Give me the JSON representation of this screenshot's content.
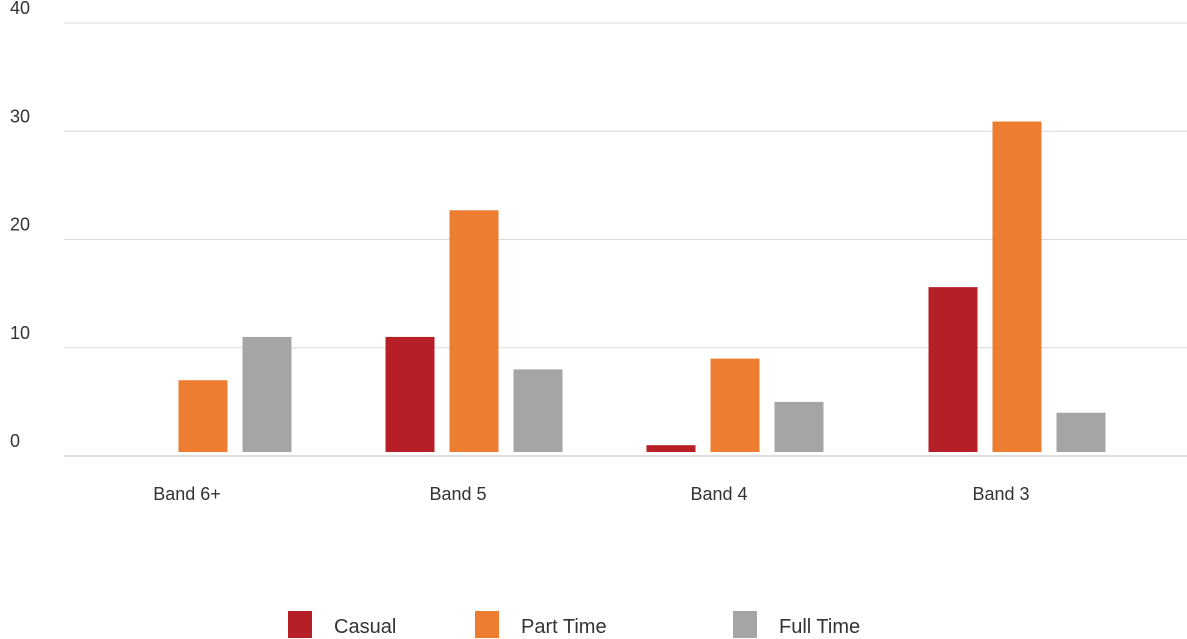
{
  "chart_data": {
    "type": "bar",
    "title": "",
    "xlabel": "",
    "ylabel": "",
    "categories": [
      "Band 6+",
      "Band 5",
      "Band 4",
      "Band 3"
    ],
    "series": [
      {
        "name": "Casual",
        "color": "#b71f26",
        "values": [
          0,
          11,
          1,
          15.6
        ]
      },
      {
        "name": "Part Time",
        "color": "#ed7d31",
        "values": [
          7,
          22.7,
          9,
          30.9
        ]
      },
      {
        "name": "Full Time",
        "color": "#a5a5a5",
        "values": [
          11,
          8,
          5,
          4
        ]
      }
    ],
    "ylim": [
      0,
      40
    ],
    "yticks": [
      0,
      10,
      20,
      30,
      40
    ],
    "grid": true,
    "legend_position": "bottom"
  }
}
